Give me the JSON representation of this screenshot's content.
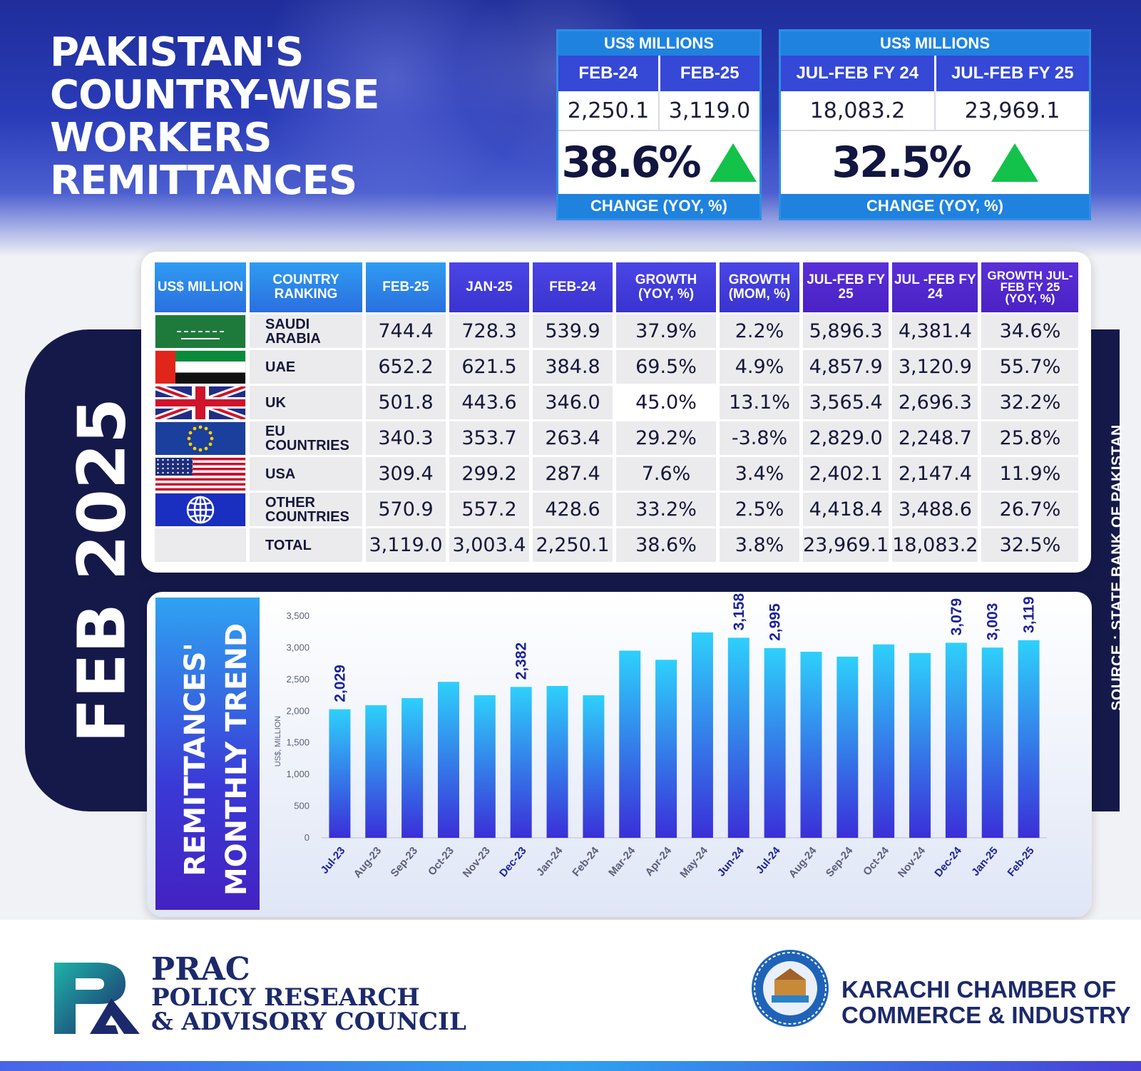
{
  "title_lines": [
    "PAKISTAN'S",
    "COUNTRY-WISE",
    "WORKERS",
    "REMITTANCES"
  ],
  "kpi_monthly": {
    "unit": "US$ MILLIONS",
    "col1": "FEB-24",
    "col2": "FEB-25",
    "val1": "2,250.1",
    "val2": "3,119.0",
    "change": "38.6%",
    "change_label": "CHANGE (YOY, %)"
  },
  "kpi_fy": {
    "unit": "US$ MILLIONS",
    "col1": "JUL-FEB FY 24",
    "col2": "JUL-FEB FY 25",
    "val1": "18,083.2",
    "val2": "23,969.1",
    "change": "32.5%",
    "change_label": "CHANGE (YOY, %)"
  },
  "side_label": "FEB 2025",
  "source": "SOURCE : STATE BANK OF PAKISTAN",
  "table": {
    "headers": [
      "US$ MILLION",
      "COUNTRY RANKING",
      "FEB-25",
      "JAN-25",
      "FEB-24",
      "GROWTH (YOY, %)",
      "GROWTH (MOM, %)",
      "JUL-FEB FY 25",
      "JUL -FEB FY 24",
      "GROWTH JUL-FEB FY 25 (YOY, %)"
    ],
    "rows": [
      {
        "flag": "saudi-arabia-flag",
        "country": "SAUDI ARABIA",
        "values": [
          "744.4",
          "728.3",
          "539.9",
          "37.9%",
          "2.2%",
          "5,896.3",
          "4,381.4",
          "34.6%"
        ]
      },
      {
        "flag": "uae-flag",
        "country": "UAE",
        "values": [
          "652.2",
          "621.5",
          "384.8",
          "69.5%",
          "4.9%",
          "4,857.9",
          "3,120.9",
          "55.7%"
        ]
      },
      {
        "flag": "uk-flag",
        "country": "UK",
        "values": [
          "501.8",
          "443.6",
          "346.0",
          "45.0%",
          "13.1%",
          "3,565.4",
          "2,696.3",
          "32.2%"
        ]
      },
      {
        "flag": "eu-flag",
        "country": "EU COUNTRIES",
        "values": [
          "340.3",
          "353.7",
          "263.4",
          "29.2%",
          "-3.8%",
          "2,829.0",
          "2,248.7",
          "25.8%"
        ]
      },
      {
        "flag": "usa-flag",
        "country": "USA",
        "values": [
          "309.4",
          "299.2",
          "287.4",
          "7.6%",
          "3.4%",
          "2,402.1",
          "2,147.4",
          "11.9%"
        ]
      },
      {
        "flag": "globe-icon",
        "country": "OTHER COUNTRIES",
        "values": [
          "570.9",
          "557.2",
          "428.6",
          "33.2%",
          "2.5%",
          "4,418.4",
          "3,488.6",
          "26.7%"
        ]
      },
      {
        "flag": "",
        "country": "TOTAL",
        "values": [
          "3,119.0",
          "3,003.4",
          "2,250.1",
          "38.6%",
          "3.8%",
          "23,969.1",
          "18,083.2",
          "32.5%"
        ]
      }
    ]
  },
  "chart_label_lines": [
    "REMITTANCES'",
    "MONTHLY TREND"
  ],
  "chart_data": {
    "type": "bar",
    "ylabel": "US$, MILLION",
    "ylim": [
      0,
      3500
    ],
    "yticks": [
      0,
      500,
      1000,
      1500,
      2000,
      2500,
      3000,
      3500
    ],
    "ytick_labels": [
      "0",
      "500",
      "1,000",
      "1,500",
      "2,000",
      "2,500",
      "3,000",
      "3,500"
    ],
    "categories": [
      "Jul-23",
      "Aug-23",
      "Sep-23",
      "Oct-23",
      "Nov-23",
      "Dec-23",
      "Jan-24",
      "Feb-24",
      "Mar-24",
      "Apr-24",
      "May-24",
      "Jun-24",
      "Jul-24",
      "Aug-24",
      "Sep-24",
      "Oct-24",
      "Nov-24",
      "Dec-24",
      "Jan-25",
      "Feb-25"
    ],
    "values": [
      2029,
      2093,
      2205,
      2462,
      2251,
      2382,
      2397,
      2250,
      2954,
      2810,
      3243,
      3158,
      2995,
      2937,
      2860,
      3053,
      2917,
      3079,
      3003,
      3119
    ],
    "data_labels": [
      "2,029",
      "",
      "",
      "",
      "",
      "2,382",
      "",
      "",
      "",
      "",
      "",
      "3,158",
      "2,995",
      "",
      "",
      "",
      "",
      "3,079",
      "3,003",
      "3,119"
    ],
    "highlighted": [
      "Jul-23",
      "Dec-23",
      "Jun-24",
      "Jul-24",
      "Dec-24",
      "Jan-25",
      "Feb-25"
    ],
    "grid": false,
    "colors": {
      "bar_top": "#2ed0fb",
      "bar_bottom": "#3a2fd8",
      "highlight_label": "#1c2399",
      "tick_label": "#5a5f7a"
    }
  },
  "footer": {
    "prac_logo_text": "PR",
    "prac_lines": [
      "PRAC",
      "POLICY RESEARCH",
      "& ADVISORY COUNCIL"
    ],
    "kcci_lines": [
      "KARACHI CHAMBER OF",
      "COMMERCE & INDUSTRY"
    ],
    "kcci_seal_text": "KARACHI CHAMBER OF COMMERCE & INDUSTRY",
    "kcci_seal_year": "KCCI 1959"
  }
}
